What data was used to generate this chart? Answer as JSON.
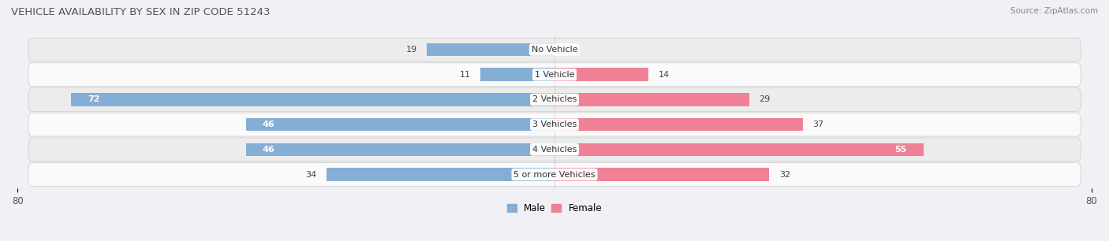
{
  "title": "VEHICLE AVAILABILITY BY SEX IN ZIP CODE 51243",
  "source": "Source: ZipAtlas.com",
  "categories": [
    "No Vehicle",
    "1 Vehicle",
    "2 Vehicles",
    "3 Vehicles",
    "4 Vehicles",
    "5 or more Vehicles"
  ],
  "male_values": [
    19,
    11,
    72,
    46,
    46,
    34
  ],
  "female_values": [
    0,
    14,
    29,
    37,
    55,
    32
  ],
  "male_color": "#85aed4",
  "female_color": "#f08096",
  "bar_height": 0.52,
  "xlim": 80,
  "bg_color": "#f0f0f5",
  "row_color_light": "#fafafa",
  "row_color_dark": "#ececec",
  "legend_male_label": "Male",
  "legend_female_label": "Female",
  "title_fontsize": 9.5,
  "label_fontsize": 8,
  "category_fontsize": 8,
  "tick_fontsize": 8.5,
  "source_fontsize": 7.5
}
